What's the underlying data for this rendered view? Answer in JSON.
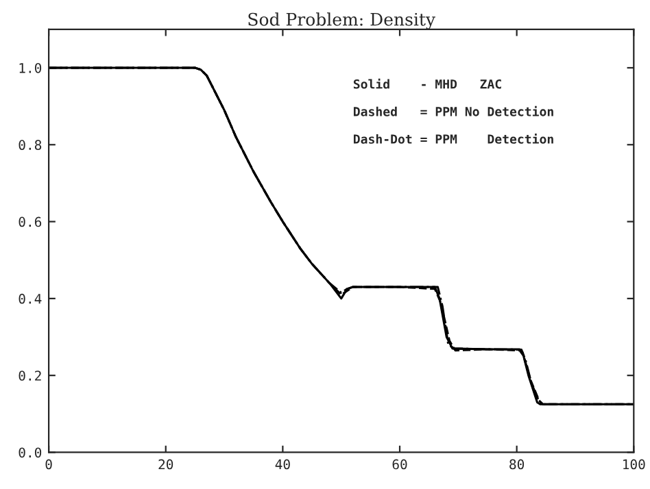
{
  "chart_data": {
    "type": "line",
    "title": "Sod Problem: Density",
    "xlim": [
      0,
      100
    ],
    "xticks": [
      0,
      20,
      40,
      60,
      80,
      100
    ],
    "ylim": [
      0,
      1.1
    ],
    "yticks": [
      {
        "value": 0,
        "label": "0.0"
      },
      {
        "value": 0.2,
        "label": "0.2"
      },
      {
        "value": 0.4,
        "label": "0.4"
      },
      {
        "value": 0.6,
        "label": "0.6"
      },
      {
        "value": 0.8,
        "label": "0.8"
      },
      {
        "value": 1.0,
        "label": "1.0"
      }
    ],
    "grid": false,
    "marker": "none",
    "series": [
      {
        "color": "#000000",
        "line_style": "solid",
        "x": [
          0,
          25,
          26,
          27,
          28,
          30,
          32,
          35,
          38,
          40,
          43,
          45,
          48,
          50,
          51,
          52,
          60,
          66,
          66.8,
          68,
          69,
          75,
          80.5,
          81,
          82,
          83.5,
          84,
          100
        ],
        "values": [
          1.0,
          1.0,
          0.995,
          0.98,
          0.95,
          0.89,
          0.82,
          0.73,
          0.65,
          0.6,
          0.53,
          0.49,
          0.44,
          0.4,
          0.425,
          0.43,
          0.43,
          0.43,
          0.4,
          0.3,
          0.27,
          0.268,
          0.268,
          0.26,
          0.2,
          0.13,
          0.125,
          0.125
        ]
      },
      {
        "color": "#000000",
        "line_style": "dashed",
        "x": [
          0,
          25,
          26,
          27,
          28,
          30,
          32,
          35,
          38,
          40,
          43,
          45,
          48,
          50,
          51,
          52,
          60,
          66,
          67,
          68.5,
          69.5,
          75,
          80.5,
          81.2,
          82.3,
          83.8,
          84.5,
          100
        ],
        "values": [
          1.0,
          1.0,
          0.995,
          0.98,
          0.95,
          0.89,
          0.82,
          0.73,
          0.65,
          0.6,
          0.53,
          0.49,
          0.44,
          0.41,
          0.42,
          0.43,
          0.43,
          0.425,
          0.39,
          0.29,
          0.265,
          0.268,
          0.265,
          0.25,
          0.19,
          0.135,
          0.125,
          0.125
        ]
      },
      {
        "color": "#000000",
        "line_style": "dashdot",
        "x": [
          0,
          25,
          26,
          27,
          28,
          30,
          32,
          35,
          38,
          40,
          43,
          45,
          48,
          50,
          51,
          52,
          60,
          66.5,
          67.3,
          68.3,
          69.3,
          75,
          80.8,
          81.5,
          82.5,
          83.6,
          84.3,
          100
        ],
        "values": [
          1.0,
          1.0,
          0.995,
          0.98,
          0.95,
          0.89,
          0.82,
          0.73,
          0.65,
          0.6,
          0.53,
          0.49,
          0.44,
          0.415,
          0.425,
          0.43,
          0.43,
          0.43,
          0.38,
          0.28,
          0.27,
          0.268,
          0.267,
          0.24,
          0.18,
          0.14,
          0.125,
          0.125
        ]
      }
    ],
    "annotations": [
      "Solid    - MHD   ZAC",
      "Dashed   = PPM No Detection",
      "Dash-Dot = PPM    Detection"
    ]
  }
}
